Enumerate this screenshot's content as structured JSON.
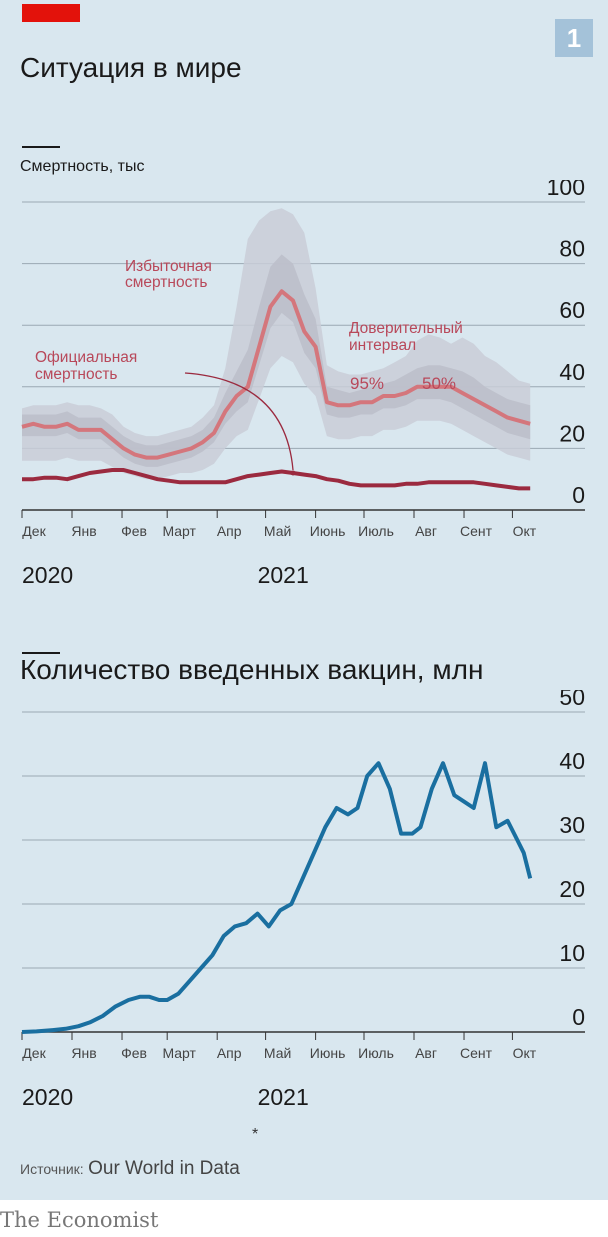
{
  "badge": "1",
  "source": {
    "label": "Источник:",
    "value": "Our World in Data"
  },
  "footnote": "*",
  "brand": "The Economist",
  "colors": {
    "background": "#d9e7ef",
    "excess": "#d4767c",
    "official": "#9b2a3f",
    "vaccines": "#1a6fa0",
    "ci95": "#c9cdd7",
    "ci50": "#bcbfca",
    "annotation_text": "#b8485a",
    "grid": "#9aa8b3"
  },
  "chart_data": [
    {
      "type": "line",
      "title": "Ситуация в мире",
      "ylabel": "Смертность, тыс",
      "xlabel": "",
      "ylim": [
        0,
        100
      ],
      "yticks": [
        0,
        20,
        40,
        60,
        80,
        100
      ],
      "xlim": [
        "2020-12-01",
        "2021-10-15"
      ],
      "month_ticks": [
        {
          "date": "2020-12-01",
          "label": "Дек"
        },
        {
          "date": "2021-01-01",
          "label": "Янв"
        },
        {
          "date": "2021-02-01",
          "label": "Фев"
        },
        {
          "date": "2021-03-01",
          "label": "Март"
        },
        {
          "date": "2021-04-01",
          "label": "Апр"
        },
        {
          "date": "2021-05-01",
          "label": "Май"
        },
        {
          "date": "2021-06-01",
          "label": "Июнь"
        },
        {
          "date": "2021-07-01",
          "label": "Июль"
        },
        {
          "date": "2021-08-01",
          "label": "Авг"
        },
        {
          "date": "2021-09-01",
          "label": "Сент"
        },
        {
          "date": "2021-10-01",
          "label": "Окт"
        }
      ],
      "year_labels": [
        {
          "date": "2020-12-01",
          "label": "2020"
        },
        {
          "date": "2021-05-01",
          "label": "2021"
        }
      ],
      "annotations": {
        "excess": [
          "Избыточная",
          "смертность"
        ],
        "official": [
          "Официальная",
          "смертность"
        ],
        "interval": [
          "Доверительный",
          "интервал"
        ],
        "ci95": "95%",
        "ci50": "50%"
      },
      "series": [
        {
          "name": "Избыточная смертность",
          "x": [
            "2020-12-01",
            "2020-12-08",
            "2020-12-15",
            "2020-12-22",
            "2020-12-29",
            "2021-01-05",
            "2021-01-12",
            "2021-01-19",
            "2021-01-26",
            "2021-02-02",
            "2021-02-09",
            "2021-02-16",
            "2021-02-23",
            "2021-03-02",
            "2021-03-09",
            "2021-03-16",
            "2021-03-23",
            "2021-03-30",
            "2021-04-06",
            "2021-04-13",
            "2021-04-20",
            "2021-04-27",
            "2021-05-04",
            "2021-05-11",
            "2021-05-18",
            "2021-05-25",
            "2021-06-01",
            "2021-06-08",
            "2021-06-15",
            "2021-06-22",
            "2021-06-29",
            "2021-07-06",
            "2021-07-13",
            "2021-07-20",
            "2021-07-27",
            "2021-08-03",
            "2021-08-10",
            "2021-08-17",
            "2021-08-24",
            "2021-08-31",
            "2021-09-07",
            "2021-09-14",
            "2021-09-21",
            "2021-09-28",
            "2021-10-05",
            "2021-10-12"
          ],
          "values": [
            27,
            28,
            27,
            27,
            28,
            26,
            26,
            26,
            23,
            20,
            18,
            17,
            17,
            18,
            19,
            20,
            22,
            25,
            32,
            37,
            40,
            53,
            66,
            71,
            68,
            58,
            53,
            35,
            34,
            34,
            35,
            35,
            37,
            37,
            38,
            40,
            40,
            40,
            40,
            38,
            36,
            34,
            32,
            30,
            29,
            28
          ],
          "ci95_low": [
            16,
            16,
            16,
            16,
            17,
            16,
            16,
            16,
            14,
            12,
            11,
            10,
            10,
            11,
            12,
            12,
            13,
            15,
            20,
            24,
            26,
            36,
            46,
            50,
            48,
            41,
            37,
            24,
            23,
            23,
            24,
            24,
            26,
            26,
            27,
            29,
            29,
            29,
            28,
            26,
            24,
            22,
            20,
            18,
            17,
            16
          ],
          "ci95_high": [
            33,
            34,
            34,
            34,
            35,
            34,
            34,
            33,
            31,
            27,
            25,
            24,
            24,
            25,
            26,
            27,
            30,
            34,
            46,
            66,
            88,
            94,
            97,
            98,
            96,
            90,
            72,
            47,
            45,
            44,
            44,
            45,
            46,
            48,
            50,
            55,
            57,
            56,
            54,
            56,
            54,
            50,
            48,
            45,
            42,
            41
          ],
          "ci50_low": [
            24,
            24,
            24,
            24,
            25,
            23,
            23,
            23,
            20,
            17,
            15,
            14,
            14,
            15,
            16,
            17,
            19,
            22,
            28,
            32,
            35,
            47,
            59,
            64,
            61,
            51,
            46,
            31,
            30,
            30,
            31,
            31,
            33,
            33,
            34,
            36,
            36,
            36,
            35,
            33,
            31,
            29,
            27,
            25,
            24,
            23
          ],
          "ci50_high": [
            31,
            31,
            31,
            31,
            32,
            30,
            30,
            30,
            27,
            24,
            22,
            21,
            21,
            22,
            23,
            24,
            26,
            30,
            38,
            45,
            52,
            66,
            79,
            83,
            80,
            70,
            62,
            40,
            39,
            38,
            39,
            40,
            41,
            42,
            44,
            46,
            47,
            47,
            46,
            45,
            43,
            40,
            38,
            36,
            35,
            34
          ]
        },
        {
          "name": "Официальная смертность",
          "x": [
            "2020-12-01",
            "2020-12-08",
            "2020-12-15",
            "2020-12-22",
            "2020-12-29",
            "2021-01-05",
            "2021-01-12",
            "2021-01-19",
            "2021-01-26",
            "2021-02-02",
            "2021-02-09",
            "2021-02-16",
            "2021-02-23",
            "2021-03-02",
            "2021-03-09",
            "2021-03-16",
            "2021-03-23",
            "2021-03-30",
            "2021-04-06",
            "2021-04-13",
            "2021-04-20",
            "2021-04-27",
            "2021-05-04",
            "2021-05-11",
            "2021-05-18",
            "2021-05-25",
            "2021-06-01",
            "2021-06-08",
            "2021-06-15",
            "2021-06-22",
            "2021-06-29",
            "2021-07-06",
            "2021-07-13",
            "2021-07-20",
            "2021-07-27",
            "2021-08-03",
            "2021-08-10",
            "2021-08-17",
            "2021-08-24",
            "2021-08-31",
            "2021-09-07",
            "2021-09-14",
            "2021-09-21",
            "2021-09-28",
            "2021-10-05",
            "2021-10-12"
          ],
          "values": [
            10,
            10,
            10.5,
            10.5,
            10,
            11,
            12,
            12.5,
            13,
            13,
            12,
            11,
            10,
            9.5,
            9,
            9,
            9,
            9,
            9,
            10,
            11,
            11.5,
            12,
            12.5,
            12,
            11.5,
            11,
            10,
            9.5,
            8.5,
            8,
            8,
            8,
            8,
            8.5,
            8.5,
            9,
            9,
            9,
            9,
            9,
            8.5,
            8,
            7.5,
            7,
            7
          ]
        }
      ]
    },
    {
      "type": "line",
      "title": "Количество введенных вакцин, млн",
      "ylabel": "",
      "xlabel": "",
      "ylim": [
        0,
        50
      ],
      "yticks": [
        0,
        10,
        20,
        30,
        40,
        50
      ],
      "xlim": [
        "2020-12-01",
        "2021-10-15"
      ],
      "month_ticks": [
        {
          "date": "2020-12-01",
          "label": "Дек"
        },
        {
          "date": "2021-01-01",
          "label": "Янв"
        },
        {
          "date": "2021-02-01",
          "label": "Фев"
        },
        {
          "date": "2021-03-01",
          "label": "Март"
        },
        {
          "date": "2021-04-01",
          "label": "Апр"
        },
        {
          "date": "2021-05-01",
          "label": "Май"
        },
        {
          "date": "2021-06-01",
          "label": "Июнь"
        },
        {
          "date": "2021-07-01",
          "label": "Июль"
        },
        {
          "date": "2021-08-01",
          "label": "Авг"
        },
        {
          "date": "2021-09-01",
          "label": "Сент"
        },
        {
          "date": "2021-10-01",
          "label": "Окт"
        }
      ],
      "year_labels": [
        {
          "date": "2020-12-01",
          "label": "2020"
        },
        {
          "date": "2021-05-01",
          "label": "2021"
        }
      ],
      "series": [
        {
          "name": "",
          "x": [
            "2020-12-01",
            "2020-12-10",
            "2020-12-20",
            "2020-12-28",
            "2021-01-05",
            "2021-01-12",
            "2021-01-20",
            "2021-01-28",
            "2021-02-05",
            "2021-02-12",
            "2021-02-18",
            "2021-02-24",
            "2021-03-01",
            "2021-03-08",
            "2021-03-15",
            "2021-03-22",
            "2021-03-29",
            "2021-04-05",
            "2021-04-12",
            "2021-04-19",
            "2021-04-26",
            "2021-05-03",
            "2021-05-10",
            "2021-05-17",
            "2021-05-24",
            "2021-05-31",
            "2021-06-07",
            "2021-06-14",
            "2021-06-21",
            "2021-06-27",
            "2021-07-03",
            "2021-07-10",
            "2021-07-17",
            "2021-07-24",
            "2021-07-31",
            "2021-08-05",
            "2021-08-12",
            "2021-08-19",
            "2021-08-26",
            "2021-09-01",
            "2021-09-07",
            "2021-09-14",
            "2021-09-21",
            "2021-09-28",
            "2021-10-04",
            "2021-10-08",
            "2021-10-12"
          ],
          "values": [
            0,
            0.1,
            0.3,
            0.5,
            0.9,
            1.5,
            2.5,
            4,
            5,
            5.5,
            5.5,
            5,
            5,
            6,
            8,
            10,
            12,
            15,
            16.5,
            17,
            18.5,
            16.5,
            19,
            20,
            24,
            28,
            32,
            35,
            34,
            35,
            40,
            42,
            38,
            31,
            31,
            32,
            38,
            42,
            37,
            36,
            35,
            42,
            32,
            33,
            30,
            28,
            24
          ]
        }
      ]
    }
  ]
}
